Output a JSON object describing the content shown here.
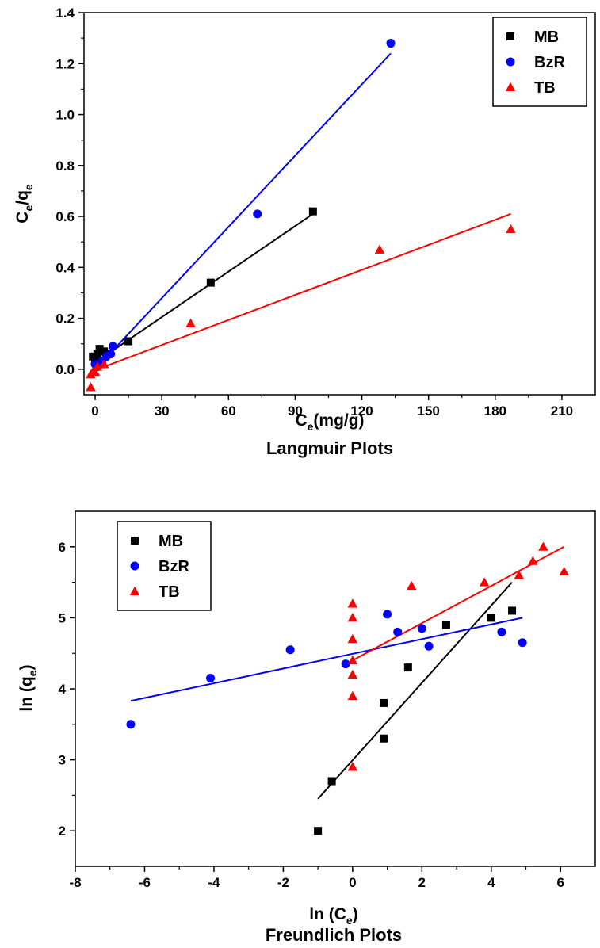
{
  "chart_data": [
    {
      "type": "scatter",
      "title": "Langmuir Plots",
      "xlabel": "C",
      "xlabel_sub": "e",
      "xlabel_suffix": "(mg/g)",
      "ylabel": "C",
      "ylabel_sub1": "e",
      "ylabel_mid": "/q",
      "ylabel_sub2": "e",
      "xlim": [
        -5,
        225
      ],
      "ylim": [
        -0.1,
        1.4
      ],
      "xticks": [
        0,
        30,
        60,
        90,
        120,
        150,
        180,
        210
      ],
      "yticks": [
        0.0,
        0.2,
        0.4,
        0.6,
        0.8,
        1.0,
        1.2,
        1.4
      ],
      "ytick_labels": [
        "0.0",
        "0.2",
        "0.4",
        "0.6",
        "0.8",
        "1.0",
        "1.2",
        "1.4"
      ],
      "legend_position": "top-right",
      "series": [
        {
          "name": "MB",
          "color": "#000000",
          "marker": "square",
          "x": [
            -1,
            0,
            1,
            2,
            4,
            5,
            15,
            52,
            98
          ],
          "y": [
            0.05,
            0.03,
            0.06,
            0.08,
            0.07,
            0.06,
            0.11,
            0.34,
            0.62
          ],
          "fit": [
            [
              -1,
              0.02
            ],
            [
              98,
              0.61
            ]
          ]
        },
        {
          "name": "BzR",
          "color": "#0000ff",
          "marker": "circle",
          "x": [
            0,
            1,
            2,
            3,
            5,
            7,
            8,
            73,
            133
          ],
          "y": [
            0.02,
            0.01,
            0.02,
            0.03,
            0.05,
            0.06,
            0.09,
            0.61,
            1.28
          ],
          "fit": [
            [
              -1,
              -0.01
            ],
            [
              133,
              1.24
            ]
          ]
        },
        {
          "name": "TB",
          "color": "#ff0000",
          "marker": "triangle",
          "x": [
            -2,
            -2,
            -1,
            0,
            1,
            4,
            43,
            128,
            187
          ],
          "y": [
            -0.07,
            -0.02,
            -0.01,
            -0.01,
            0.01,
            0.02,
            0.18,
            0.47,
            0.55
          ],
          "fit": [
            [
              -2,
              -0.01
            ],
            [
              187,
              0.61
            ]
          ]
        }
      ]
    },
    {
      "type": "scatter",
      "title": "Freundlich Plots",
      "xlabel": "ln (C",
      "xlabel_sub": "e",
      "xlabel_suffix": ")",
      "ylabel": "ln (q",
      "ylabel_sub": "e",
      "ylabel_suffix": ")",
      "xlim": [
        -8,
        7
      ],
      "ylim": [
        1.5,
        6.5
      ],
      "xticks": [
        -8,
        -6,
        -4,
        -2,
        0,
        2,
        4,
        6
      ],
      "yticks": [
        2,
        3,
        4,
        5,
        6
      ],
      "legend_position": "top-left",
      "series": [
        {
          "name": "MB",
          "color": "#000000",
          "marker": "square",
          "x": [
            -1.0,
            -0.6,
            0.9,
            0.9,
            1.6,
            2.7,
            4.0,
            4.6
          ],
          "y": [
            2.0,
            2.7,
            3.3,
            3.8,
            4.3,
            4.9,
            5.0,
            5.1
          ],
          "fit": [
            [
              -1.0,
              2.45
            ],
            [
              4.6,
              5.5
            ]
          ]
        },
        {
          "name": "BzR",
          "color": "#0000ff",
          "marker": "circle",
          "x": [
            -6.4,
            -4.1,
            -1.8,
            -0.2,
            1.0,
            1.3,
            2.0,
            2.2,
            4.3,
            4.9
          ],
          "y": [
            3.5,
            4.15,
            4.55,
            4.35,
            5.05,
            4.8,
            4.85,
            4.6,
            4.8,
            4.65
          ],
          "fit": [
            [
              -6.4,
              3.83
            ],
            [
              4.9,
              5.0
            ]
          ]
        },
        {
          "name": "TB",
          "color": "#ff0000",
          "marker": "triangle",
          "x": [
            0.0,
            0.0,
            0.0,
            0.0,
            0.0,
            0.0,
            0.0,
            1.7,
            3.8,
            4.8,
            5.2,
            5.5,
            6.1
          ],
          "y": [
            2.9,
            3.9,
            4.2,
            4.4,
            4.7,
            5.0,
            5.2,
            5.45,
            5.5,
            5.6,
            5.8,
            6.0,
            5.65
          ],
          "fit": [
            [
              0.0,
              4.4
            ],
            [
              6.1,
              6.0
            ]
          ]
        }
      ]
    }
  ]
}
